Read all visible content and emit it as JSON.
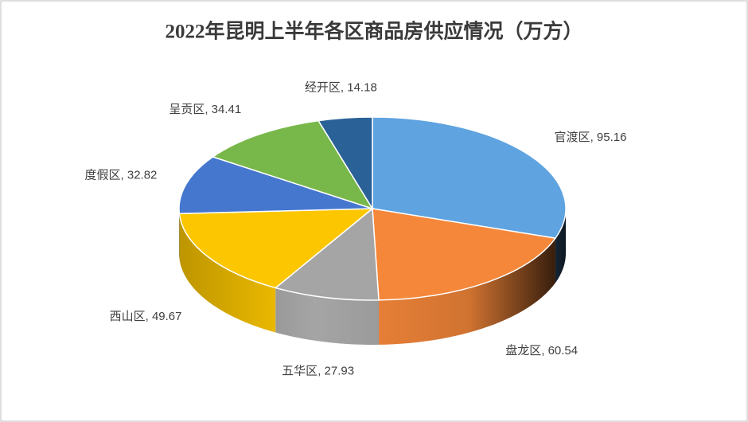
{
  "chart_data": {
    "type": "pie3d",
    "title": "2022年昆明上半年各区商品房供应情况（万方）",
    "categories": [
      "官渡区",
      "盘龙区",
      "五华区",
      "西山区",
      "度假区",
      "呈贡区",
      "经开区"
    ],
    "values": [
      95.16,
      60.54,
      27.93,
      49.67,
      32.82,
      34.41,
      14.18
    ],
    "colors": [
      "#5fa3e0",
      "#f5873a",
      "#a5a5a5",
      "#fcc600",
      "#4677cf",
      "#78b84a",
      "#2a6197"
    ],
    "label_separator": ", "
  }
}
